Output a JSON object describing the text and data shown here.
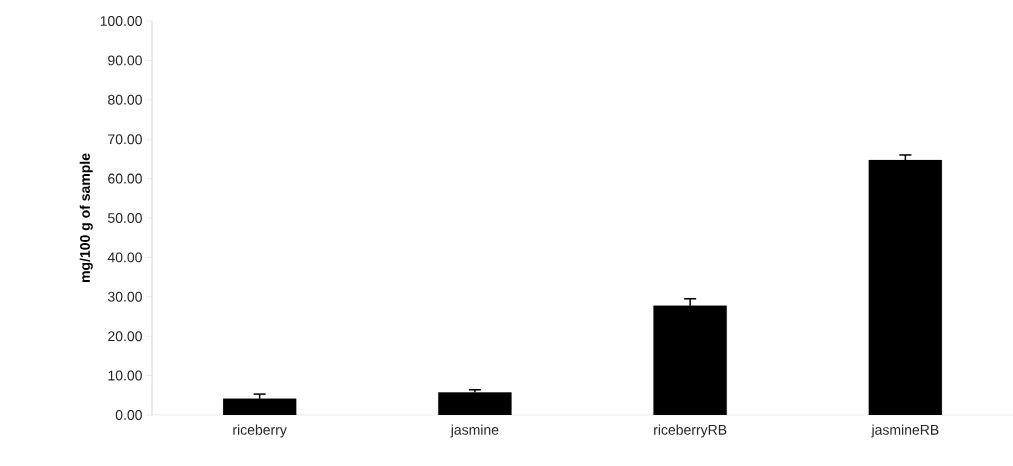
{
  "chart_data": {
    "type": "bar",
    "ylabel": "mg/100 g of sample",
    "categories": [
      "riceberry",
      "jasmine",
      "riceberryRB",
      "jasmineRB"
    ],
    "values": [
      4.1,
      5.7,
      27.7,
      64.7
    ],
    "errors": [
      1.2,
      0.7,
      1.8,
      1.3
    ],
    "color": "#000000",
    "ylim": [
      0,
      100
    ],
    "yticks": [
      {
        "value": 0,
        "label": "0.00"
      },
      {
        "value": 10,
        "label": "10.00"
      },
      {
        "value": 20,
        "label": "20.00"
      },
      {
        "value": 30,
        "label": "30.00"
      },
      {
        "value": 40,
        "label": "40.00"
      },
      {
        "value": 50,
        "label": "50.00"
      },
      {
        "value": 60,
        "label": "60.00"
      },
      {
        "value": 70,
        "label": "70.00"
      },
      {
        "value": 80,
        "label": "80.00"
      },
      {
        "value": 90,
        "label": "90.00"
      },
      {
        "value": 100,
        "label": "100.00"
      }
    ],
    "grid": false
  }
}
